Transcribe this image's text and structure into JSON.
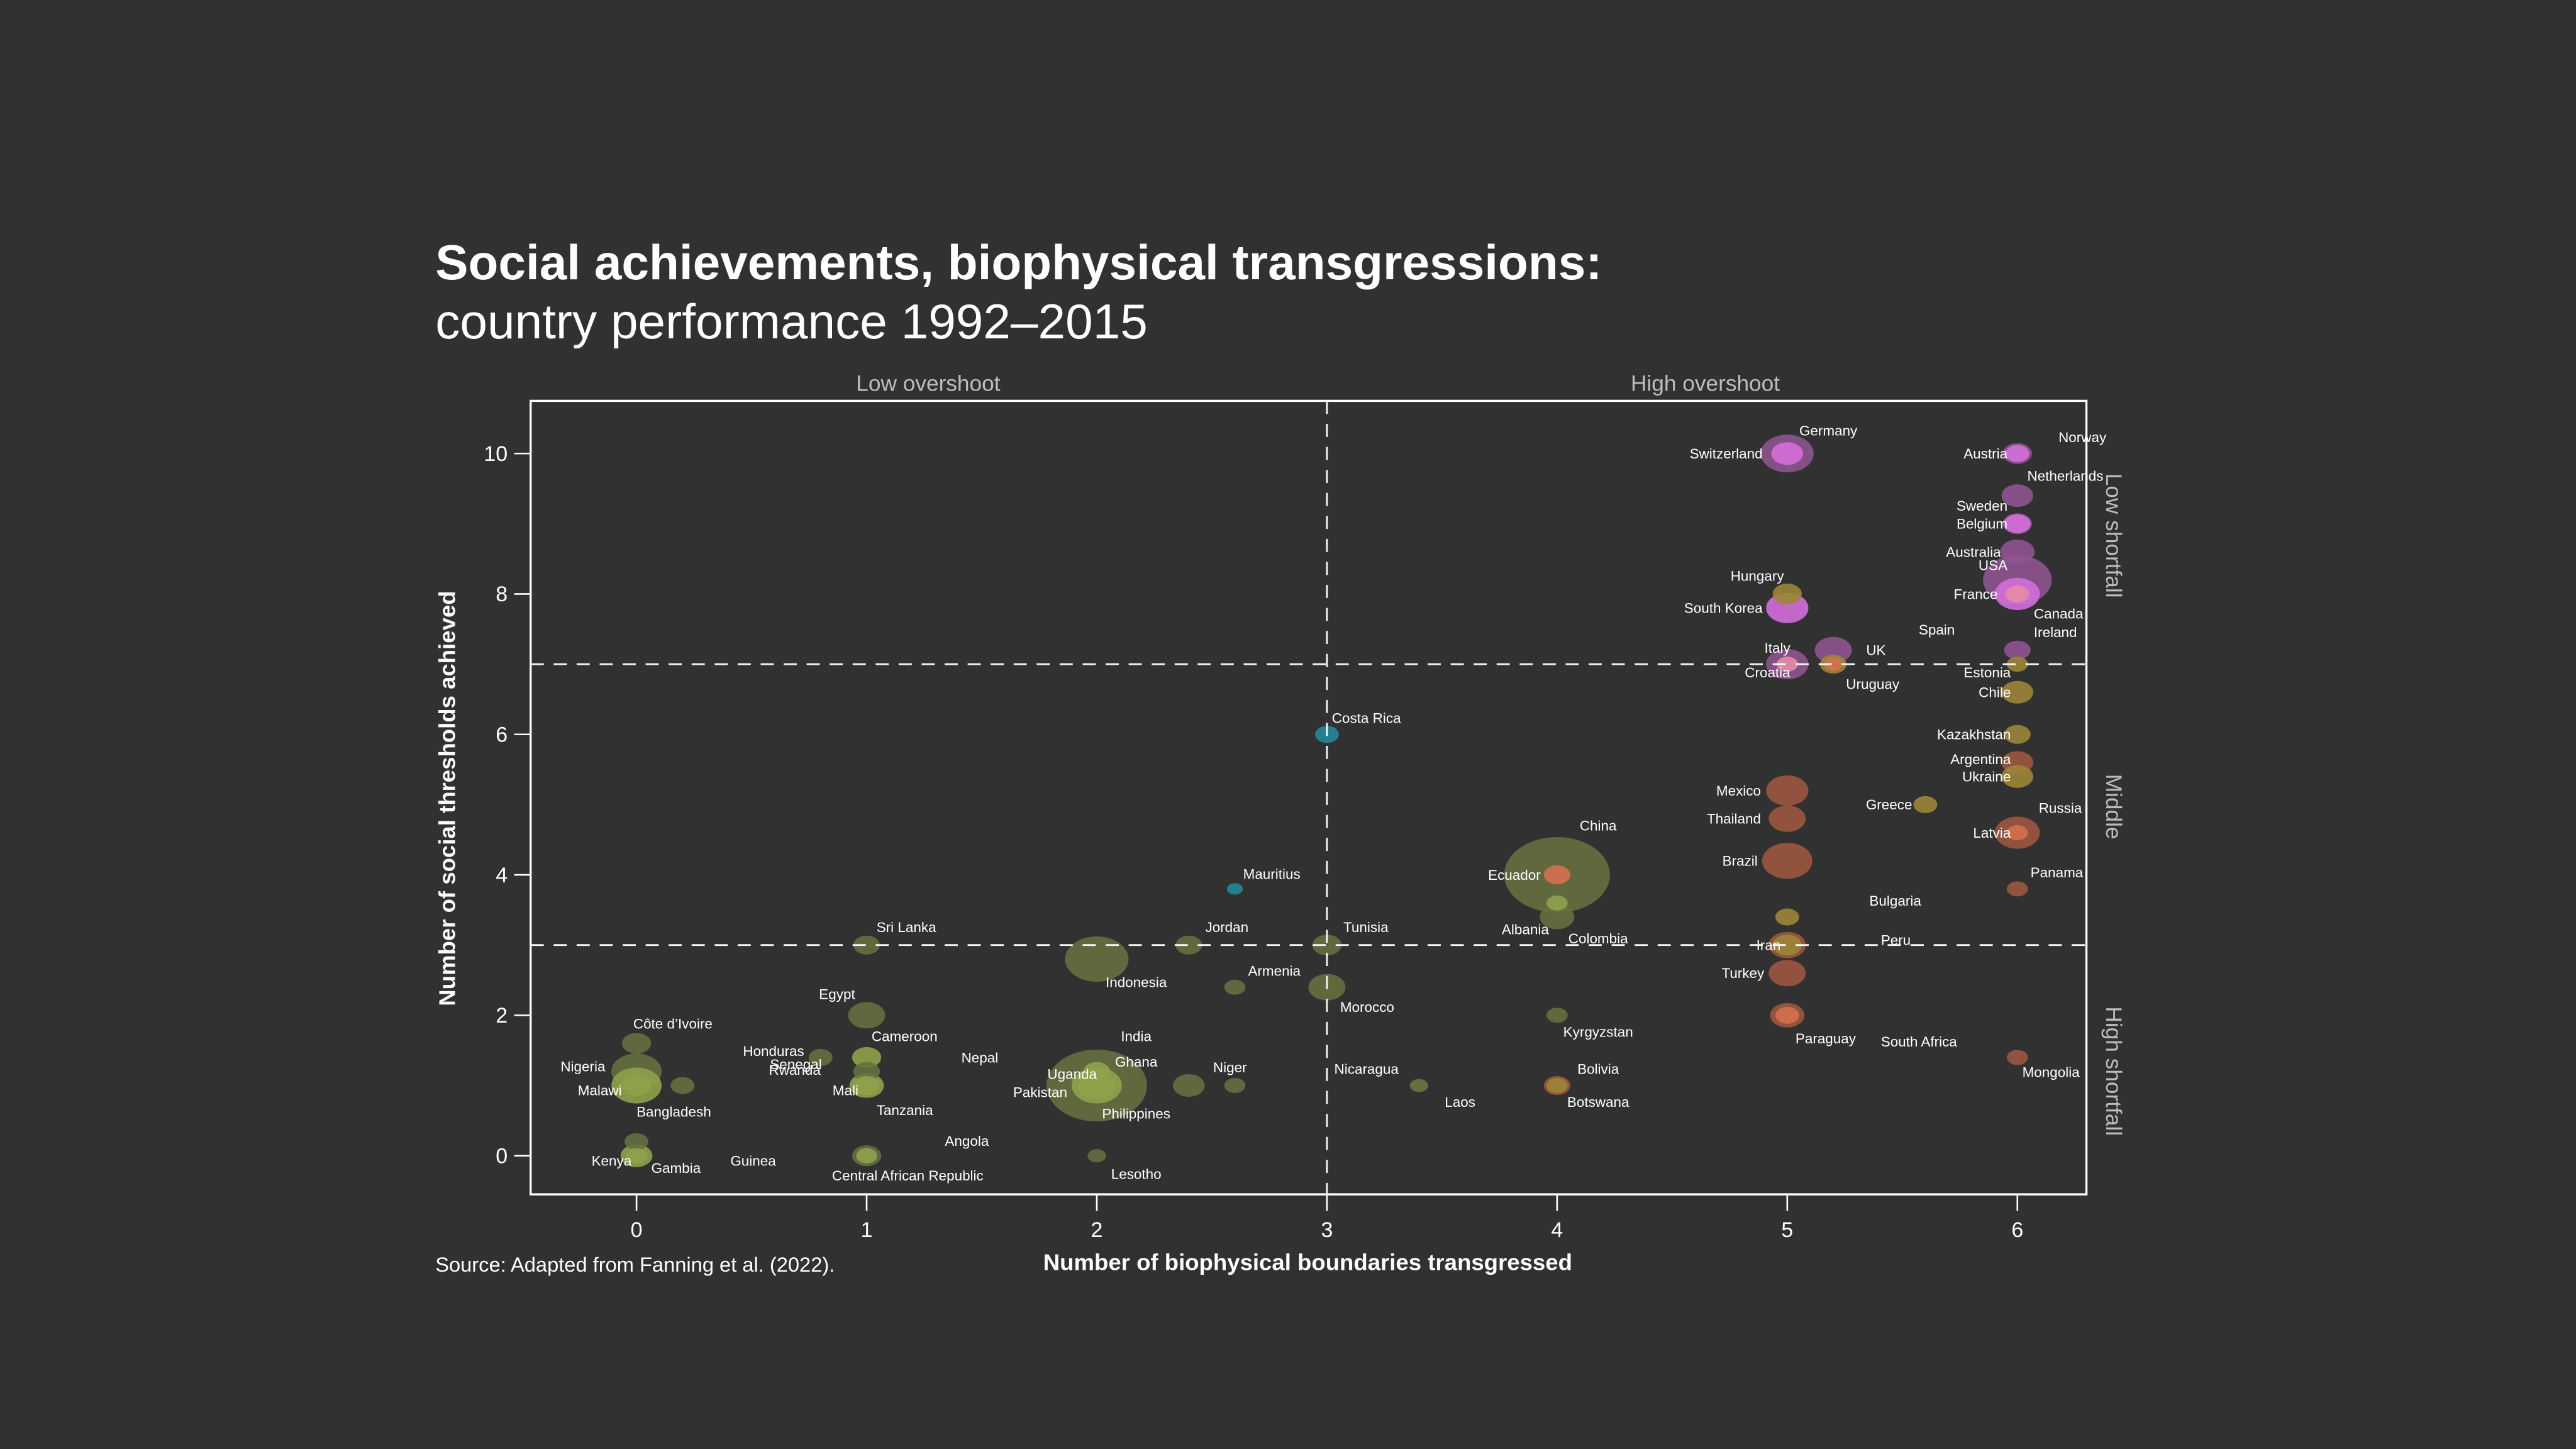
{
  "chart_data": {
    "type": "scatter",
    "subtype": "bubble",
    "title": "Social achievements, biophysical transgressions:",
    "subtitle": "country performance 1992–2015",
    "xlabel": "Number of biophysical boundaries transgressed",
    "ylabel": "Number of social thresholds achieved",
    "source": "Source: Adapted from Fanning et al. (2022).",
    "xlim": [
      -0.46,
      6.3
    ],
    "ylim": [
      -0.55,
      10.75
    ],
    "x_ticks": [
      0,
      1,
      2,
      3,
      4,
      5,
      6
    ],
    "y_ticks": [
      0,
      2,
      4,
      6,
      8,
      10
    ],
    "grid": false,
    "thresholds": {
      "x": 3,
      "y": [
        3,
        7
      ]
    },
    "quadrant_labels": {
      "top": [
        "Low overshoot",
        "High overshoot"
      ],
      "right": [
        "Low shortfall",
        "Middle",
        "High shortfall"
      ]
    },
    "colors": {
      "background": "#313131",
      "purple": "#8e5490",
      "pink": "#d46fdc",
      "salmon": "#e58ca6",
      "gold": "#9c8636",
      "rust": "#9c5740",
      "orange": "#d6704c",
      "olive": "#66703f",
      "lime": "#8fa24a",
      "teal": "#23899a"
    },
    "points": [
      {
        "name": "Germany",
        "x": 5,
        "y": 10,
        "size": 10,
        "color": "purple"
      },
      {
        "name": "Switzerland",
        "x": 5,
        "y": 10,
        "size": 6,
        "color": "pink"
      },
      {
        "name": "Austria",
        "x": 6,
        "y": 10,
        "size": 5.5,
        "color": "purple"
      },
      {
        "name": "Norway",
        "x": 6,
        "y": 10,
        "size": 4.5,
        "color": "pink"
      },
      {
        "name": "Netherlands",
        "x": 6,
        "y": 9.4,
        "size": 6,
        "color": "purple"
      },
      {
        "name": "Sweden",
        "x": 6,
        "y": 9,
        "size": 5.5,
        "color": "purple"
      },
      {
        "name": "Belgium",
        "x": 6,
        "y": 9,
        "size": 5,
        "color": "pink"
      },
      {
        "name": "Australia",
        "x": 6,
        "y": 8.6,
        "size": 6.5,
        "color": "purple"
      },
      {
        "name": "USA",
        "x": 6,
        "y": 8.2,
        "size": 13,
        "color": "purple"
      },
      {
        "name": "France",
        "x": 6,
        "y": 8,
        "size": 8.5,
        "color": "pink"
      },
      {
        "name": "Canada",
        "x": 6,
        "y": 8,
        "size": 4.5,
        "color": "salmon"
      },
      {
        "name": "Hungary",
        "x": 5,
        "y": 8,
        "size": 5.5,
        "color": "gold"
      },
      {
        "name": "South Korea",
        "x": 5,
        "y": 7.8,
        "size": 8,
        "color": "pink"
      },
      {
        "name": "UK",
        "x": 5.2,
        "y": 7.2,
        "size": 7,
        "color": "purple"
      },
      {
        "name": "Italy",
        "x": 5,
        "y": 7,
        "size": 8,
        "color": "purple"
      },
      {
        "name": "Croatia",
        "x": 5,
        "y": 7,
        "size": 4,
        "color": "salmon"
      },
      {
        "name": "Spain",
        "x": 5.2,
        "y": 7,
        "size": 5,
        "color": "gold"
      },
      {
        "name": "Uruguay",
        "x": 5.2,
        "y": 7,
        "size": 3.5,
        "color": "orange"
      },
      {
        "name": "Ireland",
        "x": 6,
        "y": 7.2,
        "size": 5,
        "color": "purple"
      },
      {
        "name": "Estonia",
        "x": 6,
        "y": 7,
        "size": 4,
        "color": "gold"
      },
      {
        "name": "Chile",
        "x": 6,
        "y": 6.6,
        "size": 6,
        "color": "gold"
      },
      {
        "name": "Kazakhstan",
        "x": 6,
        "y": 6,
        "size": 5,
        "color": "gold"
      },
      {
        "name": "Argentina",
        "x": 6,
        "y": 5.6,
        "size": 6,
        "color": "rust"
      },
      {
        "name": "Ukraine",
        "x": 6,
        "y": 5.4,
        "size": 6,
        "color": "gold"
      },
      {
        "name": "Greece",
        "x": 5.6,
        "y": 5,
        "size": 4.5,
        "color": "gold"
      },
      {
        "name": "Russia",
        "x": 6,
        "y": 4.6,
        "size": 8.5,
        "color": "rust"
      },
      {
        "name": "Latvia",
        "x": 6,
        "y": 4.6,
        "size": 4,
        "color": "orange"
      },
      {
        "name": "Panama",
        "x": 6,
        "y": 3.8,
        "size": 4,
        "color": "rust"
      },
      {
        "name": "Mexico",
        "x": 5,
        "y": 5.2,
        "size": 8,
        "color": "rust"
      },
      {
        "name": "Thailand",
        "x": 5,
        "y": 4.8,
        "size": 7,
        "color": "rust"
      },
      {
        "name": "Brazil",
        "x": 5,
        "y": 4.2,
        "size": 9.5,
        "color": "rust"
      },
      {
        "name": "Bulgaria",
        "x": 5,
        "y": 3.4,
        "size": 4.5,
        "color": "gold"
      },
      {
        "name": "Iran",
        "x": 5,
        "y": 3,
        "size": 7,
        "color": "rust"
      },
      {
        "name": "Peru",
        "x": 5,
        "y": 3,
        "size": 5.5,
        "color": "gold"
      },
      {
        "name": "Turkey",
        "x": 5,
        "y": 2.6,
        "size": 7,
        "color": "rust"
      },
      {
        "name": "South Africa",
        "x": 5,
        "y": 2,
        "size": 6.5,
        "color": "rust"
      },
      {
        "name": "Paraguay",
        "x": 5,
        "y": 2,
        "size": 4.5,
        "color": "orange"
      },
      {
        "name": "Mongolia",
        "x": 6,
        "y": 1.4,
        "size": 4,
        "color": "rust"
      },
      {
        "name": "China",
        "x": 4,
        "y": 4,
        "size": 20,
        "color": "olive"
      },
      {
        "name": "Ecuador",
        "x": 4,
        "y": 4,
        "size": 5,
        "color": "orange"
      },
      {
        "name": "Albania",
        "x": 4,
        "y": 3.6,
        "size": 4,
        "color": "lime"
      },
      {
        "name": "Colombia",
        "x": 4,
        "y": 3.4,
        "size": 6.5,
        "color": "olive"
      },
      {
        "name": "Kyrgyzstan",
        "x": 4,
        "y": 2,
        "size": 4,
        "color": "olive"
      },
      {
        "name": "Bolivia",
        "x": 4,
        "y": 1,
        "size": 5,
        "color": "rust"
      },
      {
        "name": "Botswana",
        "x": 4,
        "y": 1,
        "size": 4,
        "color": "gold"
      },
      {
        "name": "Nicaragua",
        "x": 3.4,
        "y": 1,
        "size": 3.5,
        "color": "olive"
      },
      {
        "name": "Laos",
        "x": 3.4,
        "y": 1,
        "size": 3,
        "color": "olive"
      },
      {
        "name": "Costa Rica",
        "x": 3,
        "y": 6,
        "size": 4.5,
        "color": "teal"
      },
      {
        "name": "Mauritius",
        "x": 2.6,
        "y": 3.8,
        "size": 3,
        "color": "teal"
      },
      {
        "name": "Tunisia",
        "x": 3,
        "y": 3,
        "size": 5.5,
        "color": "olive"
      },
      {
        "name": "Jordan",
        "x": 2.4,
        "y": 3,
        "size": 5,
        "color": "olive"
      },
      {
        "name": "Armenia",
        "x": 2.6,
        "y": 2.4,
        "size": 4,
        "color": "olive"
      },
      {
        "name": "Morocco",
        "x": 3,
        "y": 2.4,
        "size": 7,
        "color": "olive"
      },
      {
        "name": "Indonesia",
        "x": 2,
        "y": 2.8,
        "size": 12,
        "color": "olive"
      },
      {
        "name": "Sri Lanka",
        "x": 1,
        "y": 3,
        "size": 5,
        "color": "olive"
      },
      {
        "name": "Egypt",
        "x": 1,
        "y": 2,
        "size": 7,
        "color": "olive"
      },
      {
        "name": "India",
        "x": 2,
        "y": 1,
        "size": 19,
        "color": "olive"
      },
      {
        "name": "Pakistan",
        "x": 2,
        "y": 1,
        "size": 9.5,
        "color": "lime"
      },
      {
        "name": "Philippines",
        "x": 2,
        "y": 1,
        "size": 7,
        "color": "lime"
      },
      {
        "name": "Ghana",
        "x": 2,
        "y": 1.2,
        "size": 5,
        "color": "lime"
      },
      {
        "name": "Nepal",
        "x": 2,
        "y": 1,
        "size": 4.5,
        "color": "lime"
      },
      {
        "name": "Uganda",
        "x": 2.4,
        "y": 1,
        "size": 6,
        "color": "olive"
      },
      {
        "name": "Niger",
        "x": 2.6,
        "y": 1,
        "size": 4,
        "color": "olive"
      },
      {
        "name": "Lesotho",
        "x": 2,
        "y": 0,
        "size": 3.5,
        "color": "olive"
      },
      {
        "name": "Cameroon",
        "x": 1,
        "y": 1.4,
        "size": 5.5,
        "color": "lime"
      },
      {
        "name": "Rwanda",
        "x": 1,
        "y": 1.2,
        "size": 5,
        "color": "olive"
      },
      {
        "name": "Mali",
        "x": 1,
        "y": 1,
        "size": 6.5,
        "color": "lime"
      },
      {
        "name": "Tanzania",
        "x": 1,
        "y": 1,
        "size": 5,
        "color": "lime"
      },
      {
        "name": "Honduras",
        "x": 0.8,
        "y": 1.4,
        "size": 4.5,
        "color": "olive"
      },
      {
        "name": "Central African Republic",
        "x": 1,
        "y": 0,
        "size": 5.5,
        "color": "olive"
      },
      {
        "name": "Angola",
        "x": 1,
        "y": 0,
        "size": 4,
        "color": "lime"
      },
      {
        "name": "Côte d’Ivoire",
        "x": 0,
        "y": 1.6,
        "size": 5.5,
        "color": "olive"
      },
      {
        "name": "Nigeria",
        "x": 0,
        "y": 1.2,
        "size": 9.5,
        "color": "olive"
      },
      {
        "name": "Bangladesh",
        "x": 0,
        "y": 1,
        "size": 9.5,
        "color": "lime"
      },
      {
        "name": "Malawi",
        "x": 0,
        "y": 1,
        "size": 5.5,
        "color": "lime"
      },
      {
        "name": "Senegal",
        "x": 0.2,
        "y": 1,
        "size": 4.5,
        "color": "olive"
      },
      {
        "name": "Gambia",
        "x": 0,
        "y": 0.2,
        "size": 4.5,
        "color": "olive"
      },
      {
        "name": "Kenya",
        "x": 0,
        "y": 0,
        "size": 6,
        "color": "lime"
      },
      {
        "name": "Guinea",
        "x": 0,
        "y": 0,
        "size": 4,
        "color": "lime"
      }
    ]
  }
}
